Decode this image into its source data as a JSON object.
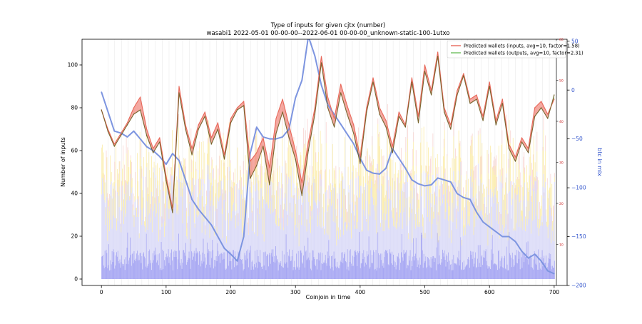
{
  "chart_data": {
    "type": "line",
    "title": "Type of inputs for given cjtx (number)",
    "subtitle": "wasabi1 2022-05-01 00-00-00--2022-06-01 00-00-00_unknown-static-100-1utxo",
    "xlabel": "Coinjoin in time",
    "ylabel": "Number of inputs",
    "y2label": "btc in mix",
    "xlim": [
      -30,
      720
    ],
    "ylim": [
      -3,
      112
    ],
    "y2lim": [
      -200,
      52
    ],
    "y3lim": [
      0,
      60
    ],
    "x_ticks": [
      0,
      100,
      200,
      300,
      400,
      500,
      600,
      700
    ],
    "y_ticks": [
      0,
      20,
      40,
      60,
      80,
      100
    ],
    "y2_ticks": [
      50,
      0,
      -50,
      -100,
      -150,
      -200
    ],
    "y3_ticks": [
      10,
      20,
      30,
      40,
      50,
      60
    ],
    "legend_position": "top-right",
    "colors": {
      "inputs": "#e8685a",
      "outputs": "#6fbf5f",
      "overlap": "#6b5a1e",
      "fill_inputs": "#f08a80",
      "fill_outputs": "#86c878",
      "btc": "#7d95e0",
      "bars_dark": "#a7a7f3",
      "bars_light": "#dcdcf8",
      "bars_yellow": "#fbeeb2",
      "bars_pink": "#f6c9c4"
    },
    "series": [
      {
        "name": "Predicted wallets (inputs, avg=10, factor=1.58)",
        "x": [
          0,
          10,
          20,
          30,
          40,
          50,
          60,
          70,
          80,
          90,
          100,
          110,
          120,
          130,
          140,
          150,
          160,
          170,
          180,
          190,
          200,
          210,
          220,
          230,
          240,
          250,
          260,
          270,
          280,
          290,
          300,
          310,
          320,
          330,
          340,
          350,
          360,
          370,
          380,
          390,
          400,
          410,
          420,
          430,
          440,
          450,
          460,
          470,
          480,
          490,
          500,
          510,
          520,
          530,
          540,
          550,
          560,
          570,
          580,
          590,
          600,
          610,
          620,
          630,
          640,
          650,
          660,
          670,
          680,
          690,
          700
        ],
        "values": [
          79,
          70,
          63,
          68,
          73,
          80,
          85,
          70,
          61,
          66,
          48,
          33,
          90,
          72,
          61,
          72,
          78,
          66,
          73,
          58,
          75,
          80,
          83,
          55,
          59,
          66,
          52,
          75,
          84,
          72,
          60,
          45,
          64,
          80,
          104,
          85,
          75,
          91,
          81,
          72,
          57,
          80,
          94,
          80,
          74,
          62,
          78,
          72,
          94,
          76,
          100,
          88,
          106,
          80,
          72,
          88,
          96,
          84,
          86,
          76,
          92,
          74,
          84,
          63,
          57,
          66,
          61,
          80,
          83,
          77,
          84
        ]
      },
      {
        "name": "Predicted wallets (outputs, avg=10, factor=2.31)",
        "x": [
          0,
          10,
          20,
          30,
          40,
          50,
          60,
          70,
          80,
          90,
          100,
          110,
          120,
          130,
          140,
          150,
          160,
          170,
          180,
          190,
          200,
          210,
          220,
          230,
          240,
          250,
          260,
          270,
          280,
          290,
          300,
          310,
          320,
          330,
          340,
          350,
          360,
          370,
          380,
          390,
          400,
          410,
          420,
          430,
          440,
          450,
          460,
          470,
          480,
          490,
          500,
          510,
          520,
          530,
          540,
          550,
          560,
          570,
          580,
          590,
          600,
          610,
          620,
          630,
          640,
          650,
          660,
          670,
          680,
          690,
          700
        ],
        "values": [
          79,
          69,
          62,
          67,
          72,
          77,
          79,
          67,
          59,
          64,
          46,
          31,
          87,
          70,
          58,
          70,
          76,
          63,
          70,
          56,
          73,
          79,
          81,
          47,
          53,
          62,
          44,
          68,
          78,
          66,
          56,
          39,
          60,
          77,
          101,
          80,
          71,
          87,
          77,
          68,
          54,
          78,
          92,
          77,
          71,
          59,
          76,
          71,
          92,
          73,
          97,
          86,
          104,
          78,
          70,
          86,
          95,
          82,
          84,
          74,
          90,
          72,
          82,
          61,
          55,
          64,
          59,
          76,
          80,
          75,
          86
        ]
      },
      {
        "name": "btc in mix",
        "axis": "right",
        "x": [
          0,
          10,
          20,
          30,
          40,
          50,
          60,
          70,
          80,
          90,
          100,
          110,
          120,
          130,
          140,
          150,
          160,
          170,
          180,
          190,
          200,
          210,
          220,
          230,
          240,
          250,
          260,
          270,
          280,
          290,
          300,
          310,
          320,
          330,
          340,
          350,
          360,
          370,
          380,
          390,
          400,
          410,
          420,
          430,
          440,
          450,
          460,
          470,
          480,
          490,
          500,
          510,
          520,
          530,
          540,
          550,
          560,
          570,
          580,
          590,
          600,
          610,
          620,
          630,
          640,
          650,
          660,
          670,
          680,
          690,
          700
        ],
        "values": [
          -2,
          -22,
          -42,
          -44,
          -48,
          -42,
          -50,
          -58,
          -62,
          -68,
          -76,
          -65,
          -72,
          -92,
          -112,
          -122,
          -130,
          -138,
          -150,
          -162,
          -168,
          -175,
          -150,
          -65,
          -38,
          -48,
          -50,
          -50,
          -48,
          -40,
          -8,
          10,
          55,
          35,
          5,
          -15,
          -25,
          -35,
          -45,
          -55,
          -70,
          -82,
          -85,
          -86,
          -80,
          -60,
          -70,
          -80,
          -92,
          -96,
          -98,
          -97,
          -90,
          -92,
          -94,
          -106,
          -110,
          -112,
          -125,
          -135,
          -140,
          -145,
          -150,
          -150,
          -155,
          -165,
          -172,
          -168,
          -175,
          -185,
          -188
        ]
      }
    ]
  }
}
